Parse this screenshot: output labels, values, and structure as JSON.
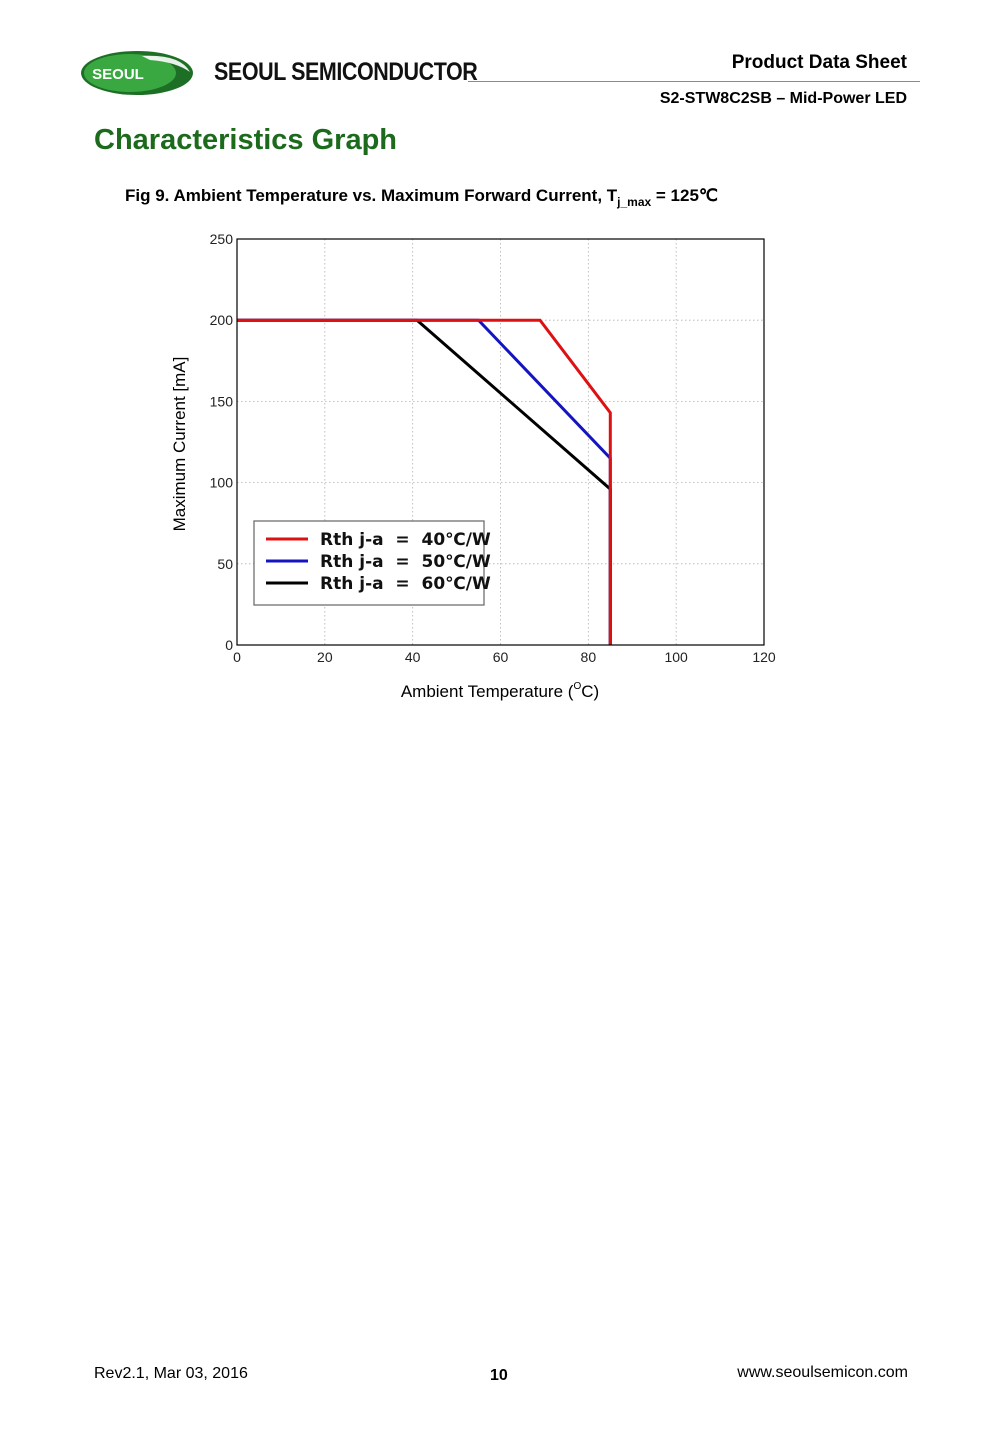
{
  "header": {
    "logo_text": "SEOUL",
    "company": "SEOUL SEMICONDUCTOR",
    "doc_type": "Product Data Sheet",
    "doc_model": "S2-STW8C2SB – Mid-Power LED",
    "colors": {
      "logo_green": "#2f9a36",
      "logo_dark_green": "#1d6f25",
      "title_green": "#1c6b1c"
    }
  },
  "section_title": "Characteristics Graph",
  "figure": {
    "caption_main": "Fig 9. Ambient Temperature vs. Maximum Forward Current,  T",
    "caption_sub": "j_max",
    "caption_tail": " = 125℃"
  },
  "chart_data": {
    "type": "line",
    "title": "",
    "xlabel": "Ambient Temperature (",
    "xlabel_degree": "O",
    "xlabel_unit": "C)",
    "ylabel": "Maximum Current [mA]",
    "xlim": [
      0,
      120
    ],
    "ylim": [
      0,
      250
    ],
    "x_ticks": [
      0,
      20,
      40,
      60,
      80,
      100,
      120
    ],
    "y_ticks": [
      0,
      50,
      100,
      150,
      200,
      250
    ],
    "grid": true,
    "legend_position": "bottom-left",
    "series": [
      {
        "name": "Rth j-a  =  40℃/W",
        "color": "#dd1111",
        "x": [
          0,
          69,
          85,
          85
        ],
        "y": [
          200,
          200,
          143,
          0
        ]
      },
      {
        "name": "Rth j-a  =  50℃/W",
        "color": "#1414c0",
        "x": [
          0,
          55,
          85,
          85
        ],
        "y": [
          200,
          200,
          115,
          0
        ]
      },
      {
        "name": "Rth j-a  =  60℃/W",
        "color": "#000000",
        "x": [
          0,
          41,
          85,
          85
        ],
        "y": [
          200,
          200,
          96,
          0
        ]
      }
    ]
  },
  "footer": {
    "revision": "Rev2.1, Mar 03, 2016",
    "page_number": "10",
    "website": "www.seoulsemicon.com"
  }
}
